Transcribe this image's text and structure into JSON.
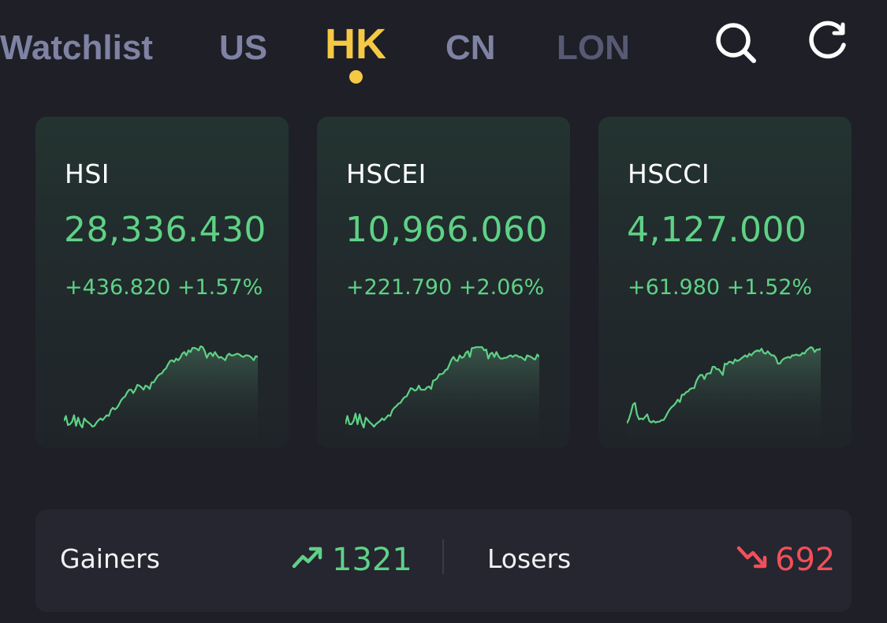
{
  "nav": {
    "tabs": [
      {
        "label": "Watchlist"
      },
      {
        "label": "US"
      },
      {
        "label": "HK"
      },
      {
        "label": "CN"
      },
      {
        "label": "LON"
      }
    ],
    "active_tab": "HK",
    "actions": [
      {
        "icon": "search-icon"
      },
      {
        "icon": "refresh-icon"
      }
    ]
  },
  "colors": {
    "accent": "#f6c944",
    "up": "#5fd186",
    "down": "#f0505a"
  },
  "cards": [
    {
      "name": "HSI",
      "price": "28,336.430",
      "change": "+436.820 +1.57%",
      "sparkline": [
        6,
        12,
        1,
        2,
        5,
        13,
        0,
        10,
        2,
        -2,
        9,
        6,
        4,
        2,
        -1,
        0,
        4,
        7,
        9,
        7,
        10,
        13,
        12,
        19,
        22,
        20,
        22,
        26,
        31,
        34,
        36,
        41,
        44,
        44,
        40,
        44,
        50,
        49,
        47,
        44,
        49,
        48,
        45,
        53,
        53,
        57,
        61,
        63,
        64,
        68,
        70,
        75,
        79,
        80,
        78,
        82,
        80,
        83,
        88,
        90,
        86,
        92,
        90,
        95,
        95,
        94,
        92,
        97,
        96,
        91,
        83,
        88,
        89,
        85,
        90,
        86,
        83,
        84,
        82,
        80,
        86,
        88,
        86,
        86,
        87,
        88,
        87,
        85,
        84,
        86,
        86,
        85,
        83,
        80,
        85,
        84
      ]
    },
    {
      "name": "HSCEI",
      "price": "10,966.060",
      "change": "+221.790 +2.06%",
      "sparkline": [
        2,
        12,
        2,
        2,
        6,
        15,
        2,
        14,
        4,
        -2,
        10,
        7,
        4,
        2,
        -1,
        2,
        4,
        6,
        9,
        7,
        10,
        13,
        12,
        19,
        22,
        24,
        27,
        28,
        32,
        35,
        36,
        41,
        46,
        45,
        43,
        44,
        49,
        44,
        44,
        44,
        47,
        48,
        45,
        55,
        56,
        58,
        63,
        63,
        64,
        68,
        69,
        75,
        81,
        84,
        80,
        79,
        86,
        83,
        84,
        89,
        91,
        84,
        95,
        95,
        96,
        96,
        96,
        96,
        92,
        93,
        82,
        88,
        89,
        84,
        90,
        85,
        82,
        82,
        83,
        83,
        85,
        86,
        84,
        86,
        86,
        84,
        84,
        82,
        80,
        86,
        85,
        84,
        82,
        81,
        87,
        84
      ]
    },
    {
      "name": "HSCCI",
      "price": "4,127.000",
      "change": "+61.980 +1.52%",
      "sparkline": [
        3,
        8,
        16,
        26,
        28,
        14,
        8,
        9,
        8,
        11,
        14,
        6,
        4,
        6,
        4,
        5,
        5,
        7,
        7,
        11,
        16,
        20,
        23,
        25,
        28,
        32,
        29,
        38,
        38,
        41,
        42,
        45,
        46,
        46,
        54,
        59,
        62,
        62,
        57,
        63,
        64,
        64,
        72,
        72,
        69,
        69,
        66,
        62,
        76,
        75,
        78,
        78,
        76,
        81,
        79,
        80,
        82,
        84,
        86,
        84,
        88,
        86,
        89,
        91,
        92,
        91,
        94,
        89,
        88,
        91,
        88,
        86,
        86,
        83,
        76,
        76,
        80,
        82,
        83,
        84,
        83,
        86,
        86,
        87,
        86,
        86,
        89,
        88,
        92,
        94,
        96,
        95,
        90,
        93,
        93,
        94
      ]
    }
  ],
  "breadth": {
    "gainers_label": "Gainers",
    "gainers_value": "1321",
    "losers_label": "Losers",
    "losers_value": "692"
  }
}
